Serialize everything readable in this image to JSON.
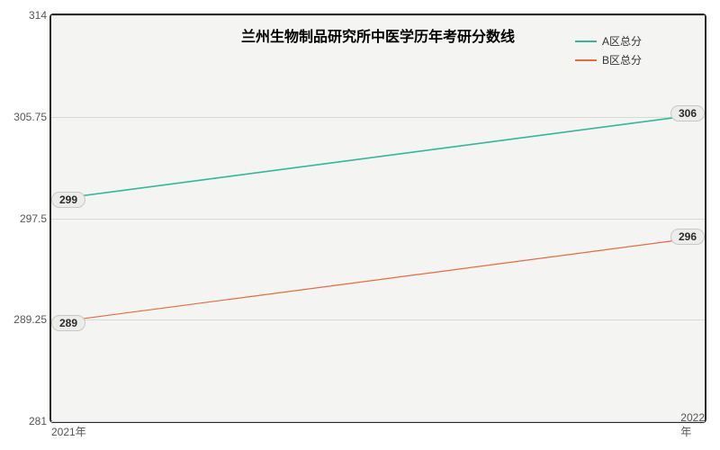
{
  "chart": {
    "type": "line",
    "title": "兰州生物制品研究所中医学历年考研分数线",
    "title_fontsize": 16,
    "background_color": "#f4f4f2",
    "border_color": "#2a2a2a",
    "grid_color": "#d8d8d4",
    "xlim": [
      "2021年",
      "2022年"
    ],
    "ylim": [
      281,
      314
    ],
    "ytick_step": 8.25,
    "yticks": [
      281,
      289.25,
      297.5,
      305.75,
      314
    ],
    "series": [
      {
        "name": "A区总分",
        "color": "#2fb99a",
        "line_width": 1.6,
        "data": [
          {
            "x": "2021年",
            "y": 299,
            "label": "299"
          },
          {
            "x": "2022年",
            "y": 306,
            "label": "306"
          }
        ]
      },
      {
        "name": "B区总分",
        "color": "#e66b3d",
        "line_width": 1.2,
        "data": [
          {
            "x": "2021年",
            "y": 289,
            "label": "289"
          },
          {
            "x": "2022年",
            "y": 296,
            "label": "296"
          }
        ]
      }
    ],
    "label_pill": {
      "bg": "#ececea",
      "border": "#c8c8c4",
      "text_color": "#2a2a2a",
      "fontsize": 12
    }
  }
}
